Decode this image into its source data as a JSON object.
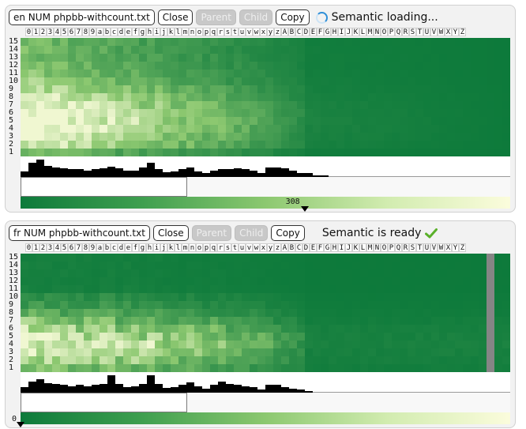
{
  "panels": [
    {
      "title": "en NUM phpbb-withcount.txt",
      "close_label": "Close",
      "parent_label": "Parent",
      "child_label": "Child",
      "copy_label": "Copy",
      "status_text": "Semantic loading...",
      "status_icon": "spinner-icon",
      "columns": [
        "0",
        "1",
        "2",
        "3",
        "4",
        "5",
        "6",
        "7",
        "8",
        "9",
        "a",
        "b",
        "c",
        "d",
        "e",
        "f",
        "g",
        "h",
        "i",
        "j",
        "k",
        "l",
        "m",
        "n",
        "o",
        "p",
        "q",
        "r",
        "s",
        "t",
        "u",
        "v",
        "w",
        "x",
        "y",
        "z",
        "A",
        "B",
        "C",
        "D",
        "E",
        "F",
        "G",
        "H",
        "I",
        "J",
        "K",
        "L",
        "M",
        "N",
        "O",
        "P",
        "Q",
        "R",
        "S",
        "T",
        "U",
        "V",
        "W",
        "X",
        "Y",
        "Z"
      ],
      "rows": [
        "15",
        "14",
        "13",
        "12",
        "11",
        "10",
        "9",
        "8",
        "7",
        "6",
        "5",
        "4",
        "3",
        "2",
        "1"
      ],
      "range_label": "308",
      "range_fraction": 0.58,
      "histogram": [
        0.3,
        0.75,
        0.9,
        0.6,
        0.5,
        0.45,
        0.4,
        0.4,
        0.35,
        0.4,
        0.45,
        0.55,
        0.45,
        0.35,
        0.35,
        0.5,
        0.75,
        0.4,
        0.25,
        0.3,
        0.4,
        0.5,
        0.3,
        0.2,
        0.35,
        0.4,
        0.4,
        0.45,
        0.4,
        0.35,
        0.2,
        0.5,
        0.5,
        0.45,
        0.35,
        0.2,
        0.2,
        0.1,
        0.1,
        0.05,
        0.05,
        0.05,
        0.05,
        0.03,
        0.03,
        0.03,
        0.03,
        0.03,
        0.03,
        0.03,
        0.03,
        0.03,
        0.03,
        0.03,
        0.03,
        0.03,
        0.03,
        0.03,
        0.03,
        0.03,
        0.03,
        0.03
      ]
    },
    {
      "title": "fr NUM phpbb-withcount.txt",
      "close_label": "Close",
      "parent_label": "Parent",
      "child_label": "Child",
      "copy_label": "Copy",
      "status_text": "Semantic is ready",
      "status_icon": "checkmark-icon",
      "columns": [
        "0",
        "1",
        "2",
        "3",
        "4",
        "5",
        "6",
        "7",
        "8",
        "9",
        "a",
        "b",
        "c",
        "d",
        "e",
        "f",
        "g",
        "h",
        "i",
        "j",
        "k",
        "l",
        "m",
        "n",
        "o",
        "p",
        "q",
        "r",
        "s",
        "t",
        "u",
        "v",
        "w",
        "x",
        "y",
        "z",
        "A",
        "B",
        "C",
        "D",
        "E",
        "F",
        "G",
        "H",
        "I",
        "J",
        "K",
        "L",
        "M",
        "N",
        "O",
        "P",
        "Q",
        "R",
        "S",
        "T",
        "U",
        "V",
        "W",
        "X",
        "Y",
        "Z"
      ],
      "rows": [
        "15",
        "14",
        "13",
        "12",
        "11",
        "10",
        "9",
        "8",
        "7",
        "6",
        "5",
        "4",
        "3",
        "2",
        "1"
      ],
      "range_label": "0",
      "range_fraction": 0.0,
      "histogram": [
        0.3,
        0.6,
        0.7,
        0.5,
        0.45,
        0.4,
        0.35,
        0.4,
        0.35,
        0.4,
        0.45,
        0.9,
        0.45,
        0.3,
        0.35,
        0.45,
        0.9,
        0.45,
        0.25,
        0.3,
        0.4,
        0.55,
        0.35,
        0.2,
        0.4,
        0.6,
        0.45,
        0.4,
        0.35,
        0.3,
        0.15,
        0.4,
        0.4,
        0.3,
        0.2,
        0.15,
        0.1,
        0.05,
        0.05,
        0.04,
        0.04,
        0.03,
        0.03,
        0.03,
        0.03,
        0.03,
        0.03,
        0.03,
        0.03,
        0.03,
        0.03,
        0.03,
        0.03,
        0.03,
        0.03,
        0.03,
        0.03,
        0.03,
        0.03,
        0.03,
        0.03,
        0.03
      ]
    }
  ],
  "colors": {
    "heat_low": "#0d7a3b",
    "heat_mid": "#8cc870",
    "heat_high": "#fbfcdc",
    "gap_column": "#858585",
    "spinner": "#2f8fd8",
    "check": "#5ab02a"
  }
}
